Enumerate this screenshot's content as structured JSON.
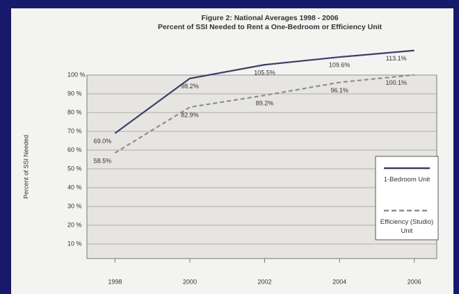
{
  "chart_data": {
    "type": "line",
    "title": "Figure 2: National Averages 1998 - 2006",
    "subtitle": "Percent of SSI Needed to Rent a One-Bedroom or Efficiency Unit",
    "y_label": "Percent of SSI Needed",
    "x": [
      1998,
      2000,
      2002,
      2004,
      2006
    ],
    "xlim": [
      1997.25,
      2006.6
    ],
    "ylim": [
      0,
      115
    ],
    "yticks": [
      {
        "value": 10,
        "label": "10 %"
      },
      {
        "value": 20,
        "label": "20 %"
      },
      {
        "value": 30,
        "label": "30 %"
      },
      {
        "value": 40,
        "label": "40 %"
      },
      {
        "value": 50,
        "label": "50 %"
      },
      {
        "value": 60,
        "label": "60 %"
      },
      {
        "value": 70,
        "label": "70 %"
      },
      {
        "value": 80,
        "label": "80 %"
      },
      {
        "value": 90,
        "label": "90 %"
      },
      {
        "value": 100,
        "label": "100 %"
      }
    ],
    "grid": true,
    "legend": "right",
    "series": [
      {
        "name": "1-Bedroom Unit",
        "color": "#3b3f66",
        "dash": false,
        "values": [
          69.0,
          98.2,
          105.5,
          109.6,
          113.1
        ],
        "value_labels": [
          "69.0%",
          "98.2%",
          "105.5%",
          "109.6%",
          "113.1%"
        ]
      },
      {
        "name": "Efficiency (Studio) Unit",
        "color": "#8b8c98",
        "dash": true,
        "values": [
          58.5,
          82.9,
          89.2,
          96.1,
          100.1
        ],
        "value_labels": [
          "58.5%",
          "82.9%",
          "89.2%",
          "96.1%",
          "100.1%"
        ]
      }
    ]
  }
}
